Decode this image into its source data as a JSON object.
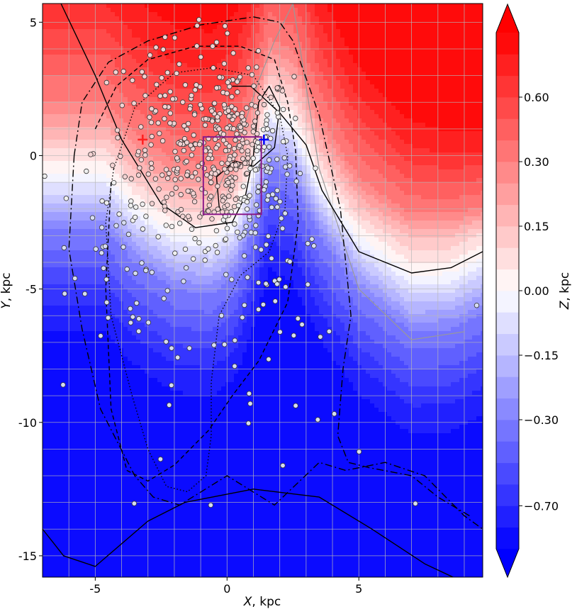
{
  "chart_data": {
    "type": "heatmap",
    "title": "",
    "xlabel_var": "X",
    "xlabel_unit": ", kpc",
    "ylabel_var": "Y",
    "ylabel_unit": ", kpc",
    "xlim": [
      -7,
      9.7
    ],
    "ylim": [
      -15.8,
      5.7
    ],
    "x_ticks": [
      -5,
      0,
      5
    ],
    "x_tick_labels": [
      "-5",
      "0",
      "5"
    ],
    "y_ticks": [
      5,
      0,
      -5,
      -10,
      -15
    ],
    "y_tick_labels": [
      "5",
      "0",
      "-5",
      "-10",
      "-15"
    ],
    "grid": true,
    "colorbar": {
      "label_var": "Z",
      "label_unit": ", kpc",
      "ticks": [
        0.6,
        0.3,
        0.15,
        0.0,
        -0.15,
        -0.3,
        -0.7
      ],
      "tick_labels": [
        "0.60",
        "0.30",
        "0.15",
        "0.00",
        "−0.15",
        "−0.30",
        "−0.70"
      ],
      "levels": [
        -1.0,
        -0.85,
        -0.7,
        -0.6,
        -0.5,
        -0.4,
        -0.3,
        -0.25,
        -0.2,
        -0.15,
        -0.1,
        -0.05,
        0.0,
        0.05,
        0.1,
        0.15,
        0.2,
        0.25,
        0.3,
        0.4,
        0.5,
        0.6,
        0.7,
        0.85
      ],
      "extend": "both",
      "colormap": "bwr",
      "colors": {
        "low": "#0000ff",
        "mid": "#ffffff",
        "high": "#ff0000"
      }
    },
    "surface": {
      "description_of_levels": "Z increases toward the upper right",
      "key_contour_Z0_x": [
        -4.6,
        -3.5,
        -2.0,
        -0.6,
        0.3,
        1.0,
        1.6,
        2.5,
        3.5,
        5.0,
        7.0,
        8.5,
        9.7
      ],
      "key_contour_Z0_y": [
        -0.7,
        -1.9,
        -2.9,
        -3.1,
        -2.4,
        -0.5,
        1.7,
        1.2,
        -0.9,
        -3.0,
        -4.5,
        -4.4,
        -3.8
      ]
    },
    "markers": [
      {
        "name": "sun",
        "x": 1.4,
        "y": 0.6,
        "color": "#0000ff",
        "symbol": "+"
      },
      {
        "name": "red-cross",
        "x": -3.2,
        "y": 0.6,
        "color": "#ff2020",
        "symbol": "+"
      }
    ],
    "rectangle": {
      "x": [
        -0.9,
        1.3
      ],
      "y": [
        -2.2,
        0.7
      ],
      "color": "#8a1a8a"
    },
    "orbit_curves": [
      {
        "style": "solid",
        "x": [
          -6.3,
          -5.0,
          -4.0,
          -2.5,
          -1.2,
          0.2,
          0.7,
          1.0,
          1.2,
          1.6,
          2.0,
          1.8,
          1.0,
          0.3,
          -0.4,
          -0.3,
          0.0
        ],
        "y": [
          5.7,
          3.0,
          0.6,
          -1.8,
          -2.7,
          -2.5,
          -1.5,
          0.0,
          2.0,
          2.6,
          1.8,
          0.3,
          -0.4,
          -0.2,
          -0.8,
          -1.9,
          -2.6
        ]
      },
      {
        "style": "solid",
        "x": [
          -7.0,
          -6.6,
          -6.2,
          -5.0,
          -3.0,
          -1.6,
          1.0,
          3.5,
          5.5,
          7.5,
          9.0
        ],
        "y": [
          -14.0,
          -14.5,
          -15.0,
          -15.4,
          -13.7,
          -13.0,
          -12.5,
          -12.8,
          -14.0,
          -15.3,
          -16.0
        ]
      },
      {
        "style": "solid",
        "x": [
          0.2,
          0.9,
          2.0,
          3.0,
          3.6,
          5.0,
          7.0,
          8.5,
          9.7
        ],
        "y": [
          2.6,
          2.6,
          1.6,
          0.4,
          -1.3,
          -3.6,
          -4.4,
          -4.2,
          -3.6
        ]
      },
      {
        "style": "dashdot",
        "x": [
          -5.8,
          -6.0,
          -5.5,
          -4.8,
          -3.5,
          -2.8,
          -1.8,
          0.0,
          1.8,
          3.5,
          4.5,
          6.0,
          7.5,
          9.0,
          9.7
        ],
        "y": [
          0.0,
          -3.5,
          -6.5,
          -9.5,
          -12.0,
          -12.8,
          -13.1,
          -12.0,
          -13.1,
          -11.5,
          -11.8,
          -11.5,
          -12.0,
          -13.5,
          -14.0
        ]
      },
      {
        "style": "dashdot",
        "x": [
          -5.8,
          -5.5,
          -4.5,
          -3.0,
          -1.0,
          1.0,
          2.0,
          2.5,
          3.5,
          4.3,
          4.7,
          4.4,
          4.2,
          4.6,
          5.4,
          7.0,
          8.0,
          9.2
        ],
        "y": [
          0.0,
          2.0,
          3.5,
          4.3,
          4.9,
          5.2,
          5.0,
          4.3,
          1.5,
          -2.0,
          -6.0,
          -8.0,
          -10.5,
          -11.5,
          -11.7,
          -12.0,
          -12.8,
          -13.5
        ]
      },
      {
        "style": "dashed",
        "x": [
          -5.0,
          -4.2,
          -3.0,
          -1.2,
          0.5,
          1.8,
          2.3,
          2.6,
          2.7,
          2.3,
          1.2,
          0.2,
          -0.7,
          -1.4,
          -2.0,
          -3.0,
          -3.8,
          -4.4,
          -4.6,
          -4.4
        ],
        "y": [
          1.0,
          2.6,
          3.6,
          4.1,
          4.1,
          3.6,
          2.0,
          0.2,
          -2.5,
          -5.5,
          -7.7,
          -9.0,
          -10.3,
          -11.0,
          -11.6,
          -12.2,
          -11.8,
          -9.5,
          -5.0,
          -1.0
        ]
      },
      {
        "style": "dotted",
        "x": [
          -4.3,
          -3.5,
          -2.0,
          -0.5,
          1.0,
          2.0,
          2.3,
          2.2,
          1.6,
          0.5,
          -0.3,
          -0.6,
          -0.6,
          -0.8,
          -1.5,
          -2.3,
          -3.0,
          -3.6,
          -4.4,
          -4.6,
          -4.3
        ],
        "y": [
          -0.5,
          1.8,
          3.1,
          3.3,
          3.0,
          1.5,
          0.0,
          -2.0,
          -3.6,
          -4.5,
          -6.0,
          -8.5,
          -10.5,
          -12.0,
          -12.6,
          -12.4,
          -11.0,
          -9.0,
          -6.0,
          -2.5,
          -0.5
        ]
      }
    ],
    "grey_curve": {
      "x": [
        -0.7,
        0.0,
        0.6,
        1.2,
        1.8,
        2.5,
        3.5,
        5.0,
        7.0,
        9.0
      ],
      "y": [
        -2.0,
        -0.5,
        1.0,
        2.8,
        4.3,
        5.7,
        -0.5,
        -5.0,
        -6.9,
        -6.6
      ]
    },
    "points": {
      "count": 560,
      "style": "white-grey filled circles with dark outline",
      "clusters": [
        {
          "cx": 0.3,
          "cy": 0.0,
          "sx": 1.1,
          "sy": 1.7,
          "n": 260
        },
        {
          "cx": -1.6,
          "cy": 0.2,
          "sx": 1.7,
          "sy": 2.0,
          "n": 180
        },
        {
          "cx": -3.5,
          "cy": -3.0,
          "sx": 1.2,
          "sy": 2.2,
          "n": 50
        },
        {
          "cx": 1.5,
          "cy": -4.0,
          "sx": 1.2,
          "sy": 1.5,
          "n": 40
        },
        {
          "cx": 0.0,
          "cy": -8.0,
          "sx": 3.0,
          "sy": 3.0,
          "n": 30
        }
      ]
    }
  }
}
